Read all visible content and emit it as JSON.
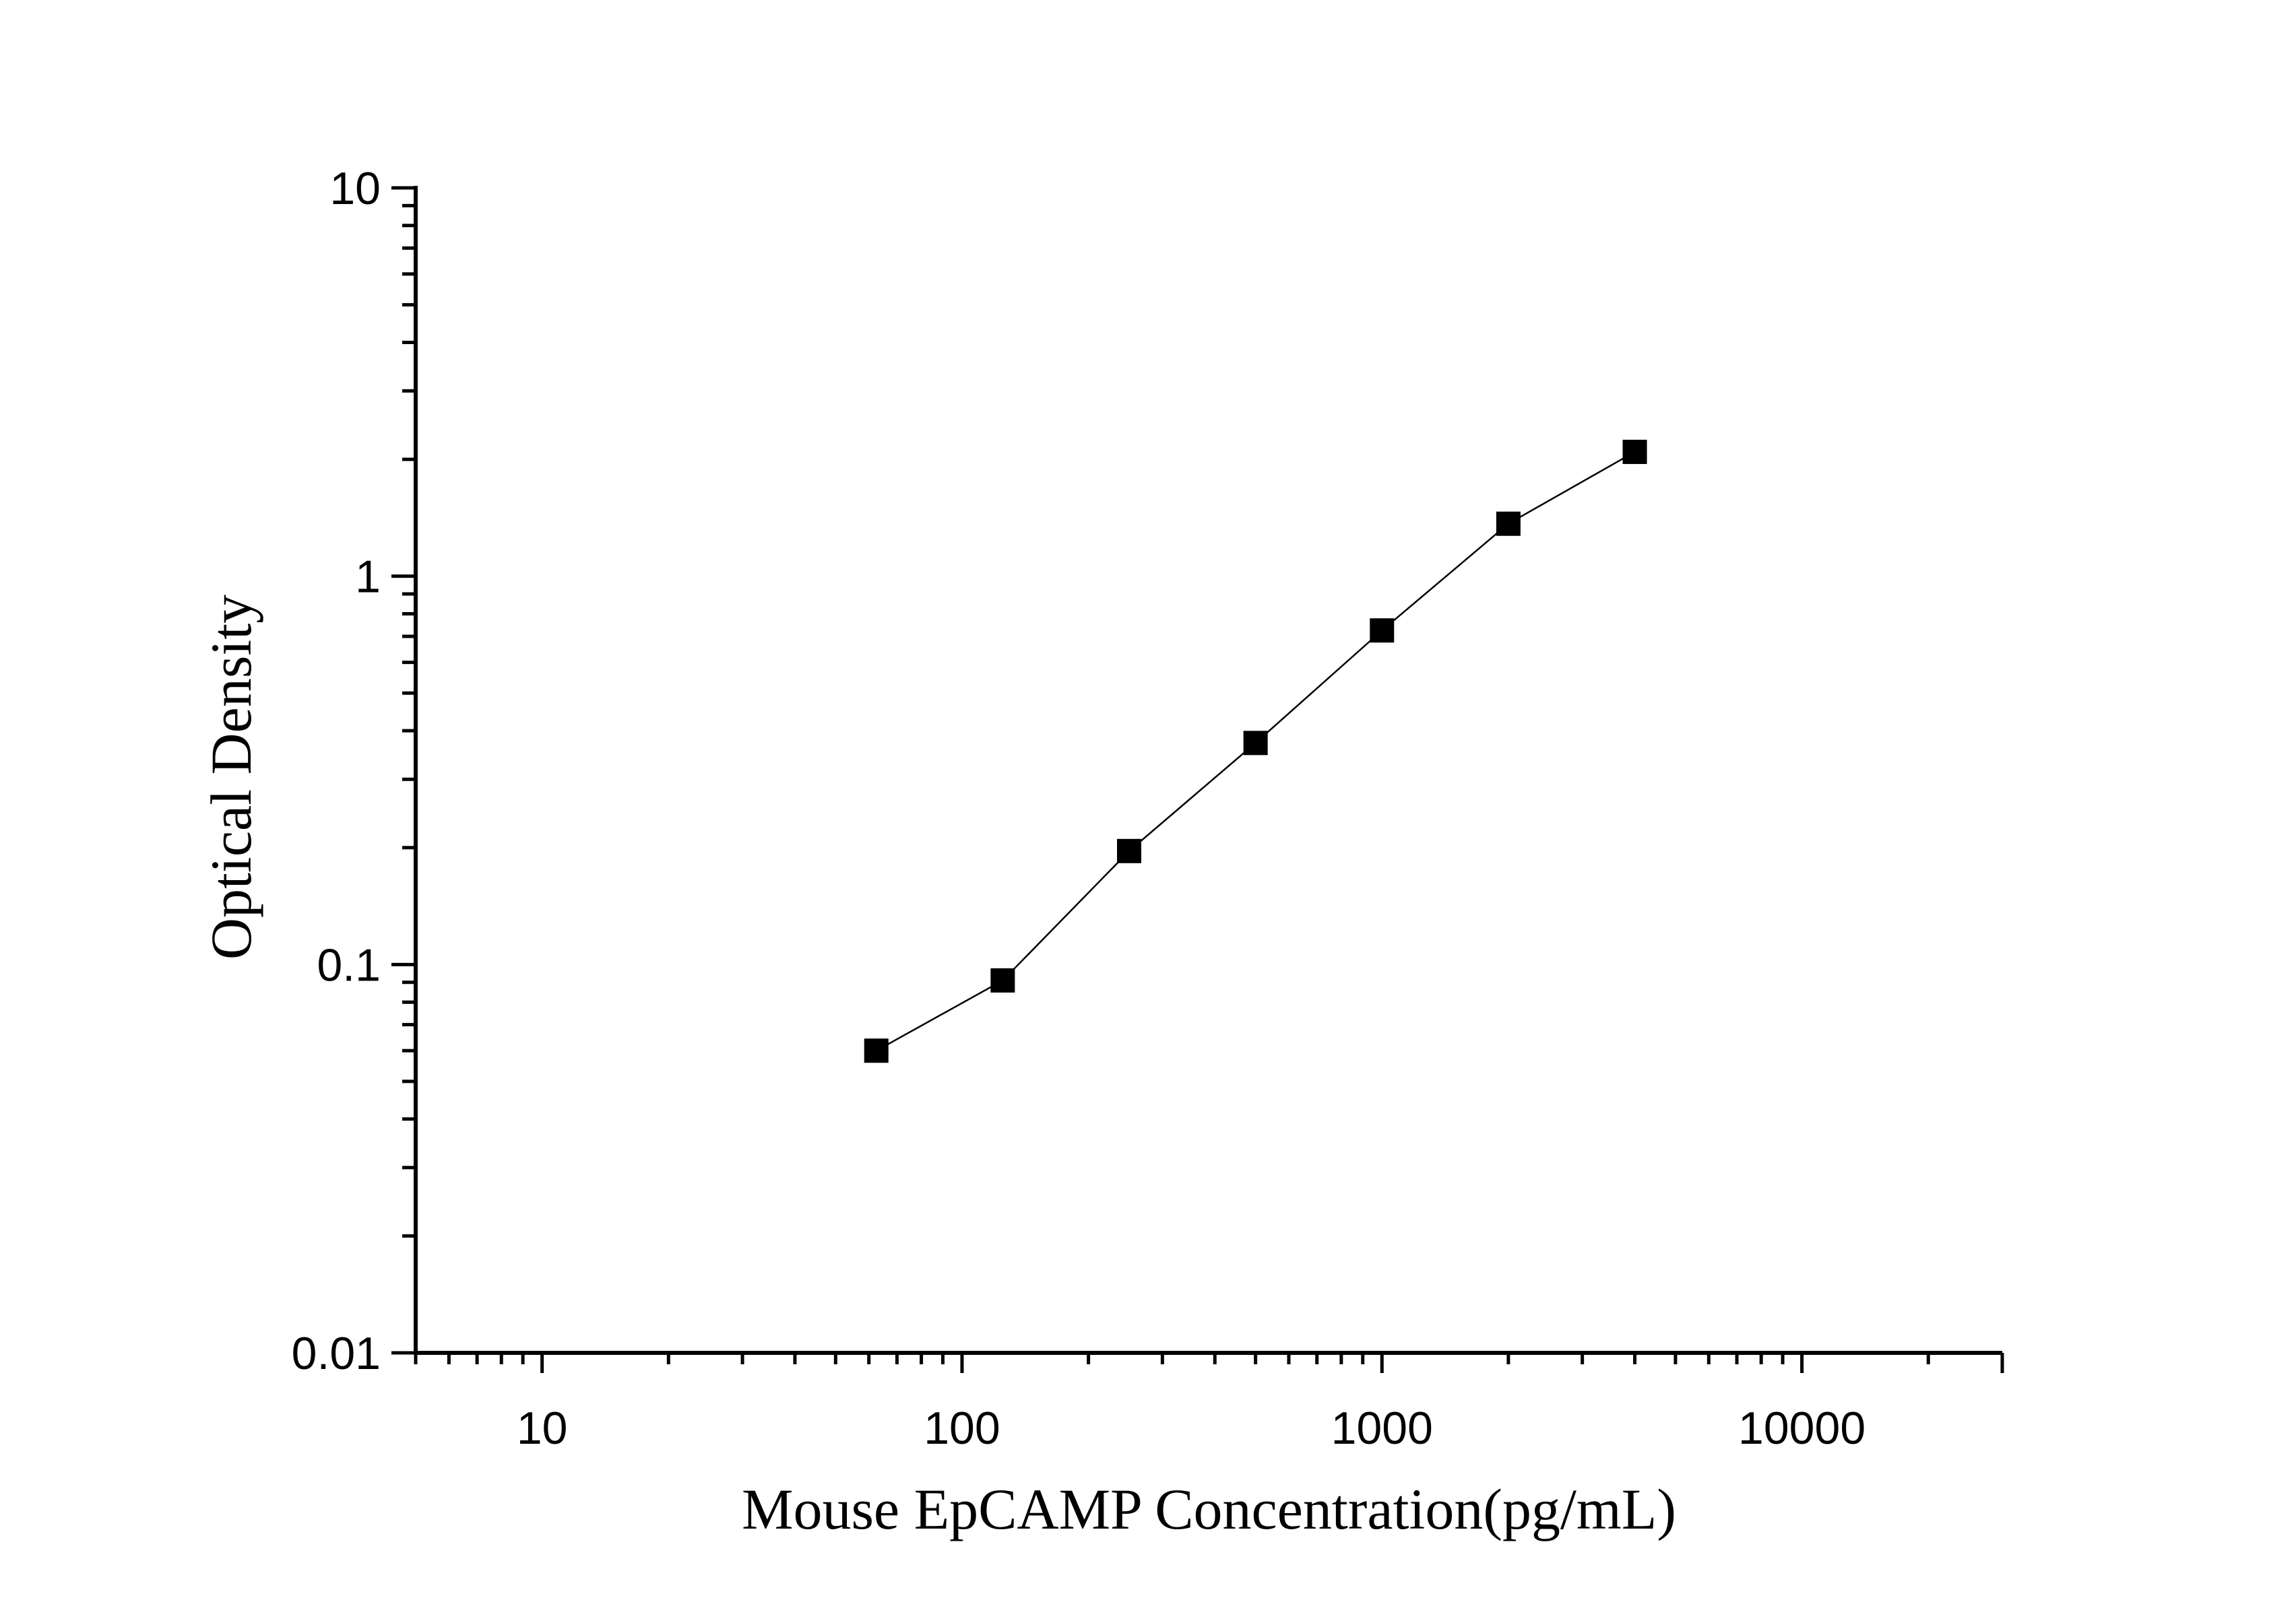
{
  "chart_data": {
    "type": "scatter",
    "xlabel": "Mouse EpCAMP Concentration(pg/mL)",
    "ylabel": "Optical Density",
    "xscale": "log",
    "yscale": "log",
    "xlim": [
      5,
      30000
    ],
    "ylim": [
      0.01,
      10
    ],
    "x_tick_labels": [
      "10",
      "100",
      "1000",
      "10000"
    ],
    "y_tick_labels": [
      "0.01",
      "0.1",
      "1",
      "10"
    ],
    "grid": false,
    "legend": "none",
    "series": [
      {
        "x": [
          62.5,
          125,
          250,
          500,
          1000,
          2000,
          4000
        ],
        "y": [
          0.06,
          0.091,
          0.196,
          0.372,
          0.725,
          1.365,
          2.09
        ],
        "marker": "square",
        "connected": true
      }
    ]
  }
}
